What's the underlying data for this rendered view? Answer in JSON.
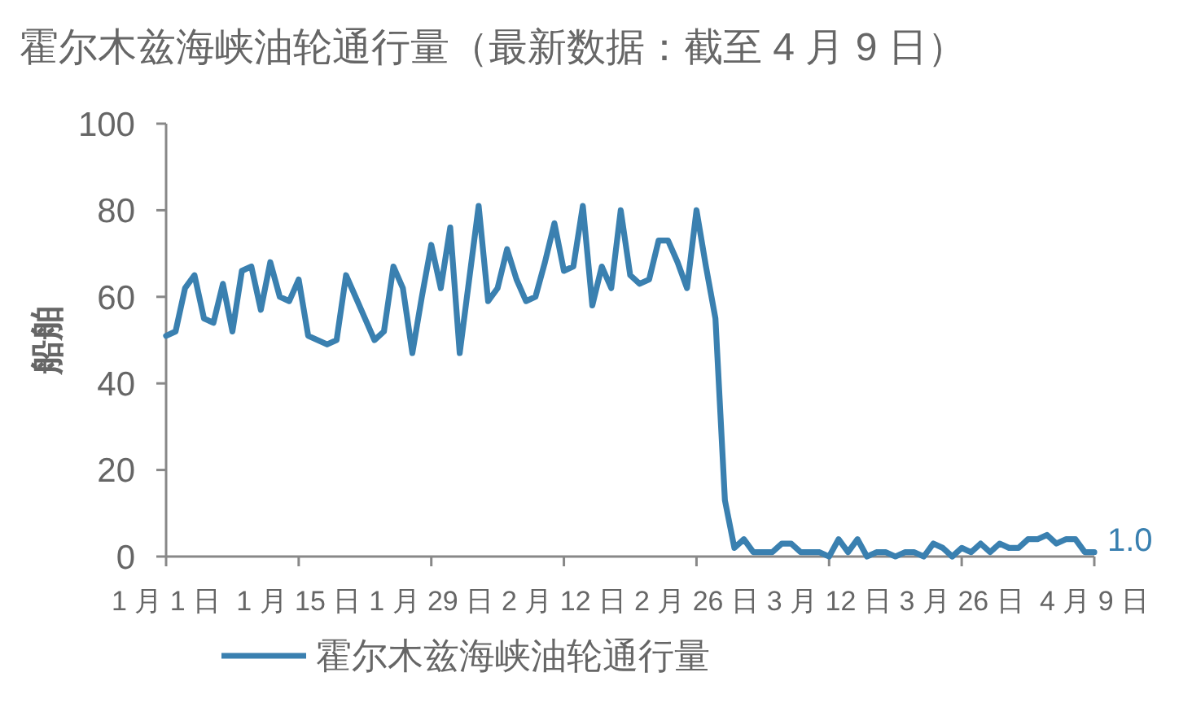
{
  "chart_data": {
    "type": "line",
    "title": "霍尔木兹海峡油轮通行量（最新数据：截至 4 月 9 日）",
    "ylabel": "船舶",
    "x": [
      "--01-01",
      "--01-02",
      "--01-03",
      "--01-04",
      "--01-05",
      "--01-06",
      "--01-07",
      "--01-08",
      "--01-09",
      "--01-10",
      "--01-11",
      "--01-12",
      "--01-13",
      "--01-14",
      "--01-15",
      "--01-16",
      "--01-17",
      "--01-18",
      "--01-19",
      "--01-20",
      "--01-21",
      "--01-22",
      "--01-23",
      "--01-24",
      "--01-25",
      "--01-26",
      "--01-27",
      "--01-28",
      "--01-29",
      "--01-30",
      "--01-31",
      "--02-01",
      "--02-02",
      "--02-03",
      "--02-04",
      "--02-05",
      "--02-06",
      "--02-07",
      "--02-08",
      "--02-09",
      "--02-10",
      "--02-11",
      "--02-12",
      "--02-13",
      "--02-14",
      "--02-15",
      "--02-16",
      "--02-17",
      "--02-18",
      "--02-19",
      "--02-20",
      "--02-21",
      "--02-22",
      "--02-23",
      "--02-24",
      "--02-25",
      "--02-26",
      "--02-27",
      "--02-28",
      "--03-01",
      "--03-02",
      "--03-03",
      "--03-04",
      "--03-05",
      "--03-06",
      "--03-07",
      "--03-08",
      "--03-09",
      "--03-10",
      "--03-11",
      "--03-12",
      "--03-13",
      "--03-14",
      "--03-15",
      "--03-16",
      "--03-17",
      "--03-18",
      "--03-19",
      "--03-20",
      "--03-21",
      "--03-22",
      "--03-23",
      "--03-24",
      "--03-25",
      "--03-26",
      "--03-27",
      "--03-28",
      "--03-29",
      "--03-30",
      "--03-31",
      "--04-01",
      "--04-02",
      "--04-03",
      "--04-04",
      "--04-05",
      "--04-06",
      "--04-07",
      "--04-08",
      "--04-09"
    ],
    "series": [
      {
        "name": "霍尔木兹海峡油轮通行量",
        "color": "#3a80b0",
        "values": [
          51,
          52,
          62,
          65,
          55,
          54,
          63,
          52,
          66,
          67,
          57,
          68,
          60,
          59,
          64,
          51,
          50,
          49,
          50,
          65,
          60,
          55,
          50,
          52,
          67,
          62,
          47,
          60,
          72,
          62,
          76,
          47,
          64,
          81,
          59,
          62,
          71,
          64,
          59,
          60,
          68,
          77,
          66,
          67,
          81,
          58,
          67,
          62,
          80,
          65,
          63,
          64,
          73,
          73,
          68,
          62,
          80,
          67,
          55,
          13,
          2,
          4,
          1,
          1,
          1,
          3,
          3,
          1,
          1,
          1,
          0,
          4,
          1,
          4,
          0,
          1,
          1,
          0,
          1,
          1,
          0,
          3,
          2,
          0,
          2,
          1,
          3,
          1,
          3,
          2,
          2,
          4,
          4,
          5,
          3,
          4,
          4,
          1,
          1
        ],
        "value_labels": [
          null,
          null,
          null,
          null,
          null,
          null,
          null,
          null,
          null,
          null,
          null,
          null,
          null,
          null,
          null,
          null,
          null,
          null,
          null,
          null,
          null,
          null,
          null,
          null,
          null,
          null,
          null,
          null,
          null,
          null,
          null,
          null,
          null,
          null,
          null,
          null,
          null,
          null,
          null,
          null,
          null,
          null,
          null,
          null,
          null,
          null,
          null,
          null,
          null,
          null,
          null,
          null,
          null,
          null,
          null,
          null,
          null,
          null,
          null,
          null,
          null,
          null,
          null,
          null,
          null,
          null,
          null,
          null,
          null,
          null,
          null,
          null,
          null,
          null,
          null,
          null,
          null,
          null,
          null,
          null,
          null,
          null,
          null,
          null,
          null,
          null,
          null,
          null,
          null,
          null,
          null,
          null,
          null,
          null,
          null,
          null,
          null,
          null,
          "1.0"
        ]
      }
    ],
    "xlim": [
      "--01-01",
      "--04-09"
    ],
    "xticks": [
      {
        "value": "--01-01",
        "label": "1 月 1 日"
      },
      {
        "value": "--01-15",
        "label": "1 月 15 日"
      },
      {
        "value": "--01-29",
        "label": "1 月 29 日"
      },
      {
        "value": "--02-12",
        "label": "2 月 12 日"
      },
      {
        "value": "--02-26",
        "label": "2 月 26 日"
      },
      {
        "value": "--03-12",
        "label": "3 月 12 日"
      },
      {
        "value": "--03-26",
        "label": "3 月 26 日"
      },
      {
        "value": "--04-09",
        "label": "4 月 9 日"
      }
    ],
    "ylim": [
      0,
      100
    ],
    "yticks": [
      0,
      20,
      40,
      60,
      80,
      100
    ],
    "legend": "bottom"
  }
}
